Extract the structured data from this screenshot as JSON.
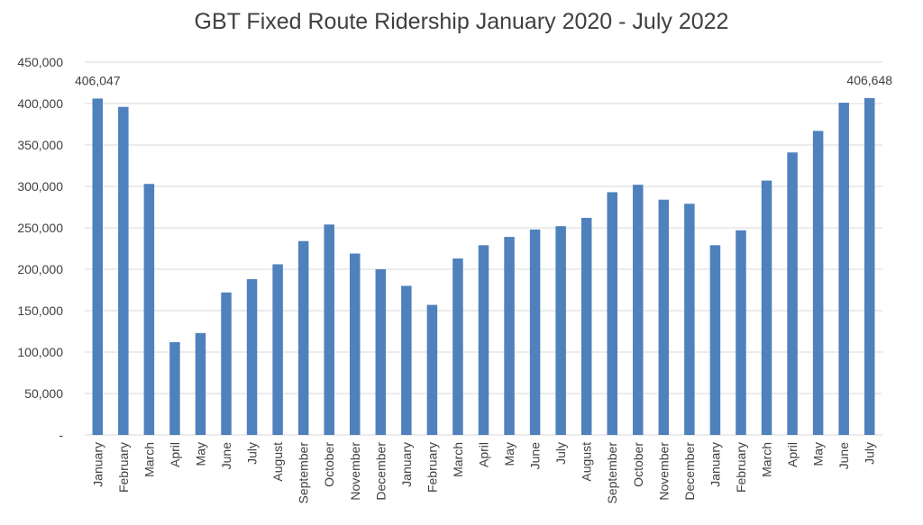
{
  "chart_data": {
    "type": "bar",
    "title": "GBT Fixed Route Ridership January 2020 - July 2022",
    "categories": [
      "January",
      "February",
      "March",
      "April",
      "May",
      "June",
      "July",
      "August",
      "September",
      "October",
      "November",
      "December",
      "January",
      "February",
      "March",
      "April",
      "May",
      "June",
      "July",
      "August",
      "September",
      "October",
      "November",
      "December",
      "January",
      "February",
      "March",
      "April",
      "May",
      "June",
      "July"
    ],
    "values": [
      406047,
      396000,
      303000,
      112000,
      123000,
      172000,
      188000,
      206000,
      234000,
      254000,
      219000,
      200000,
      180000,
      157000,
      213000,
      229000,
      239000,
      248000,
      252000,
      262000,
      293000,
      302000,
      284000,
      279000,
      229000,
      247000,
      307000,
      341000,
      367000,
      401000,
      406648
    ],
    "data_labels": [
      {
        "index": 0,
        "text": "406,047"
      },
      {
        "index": 30,
        "text": "406,648"
      }
    ],
    "y_ticks": [
      "-",
      "50,000",
      "100,000",
      "150,000",
      "200,000",
      "250,000",
      "300,000",
      "350,000",
      "400,000",
      "450,000"
    ],
    "ylim": [
      0,
      450000
    ],
    "grid": true,
    "bar_color": "#4F81BD",
    "grid_color": "#D9D9D9",
    "text_color": "#404040"
  }
}
